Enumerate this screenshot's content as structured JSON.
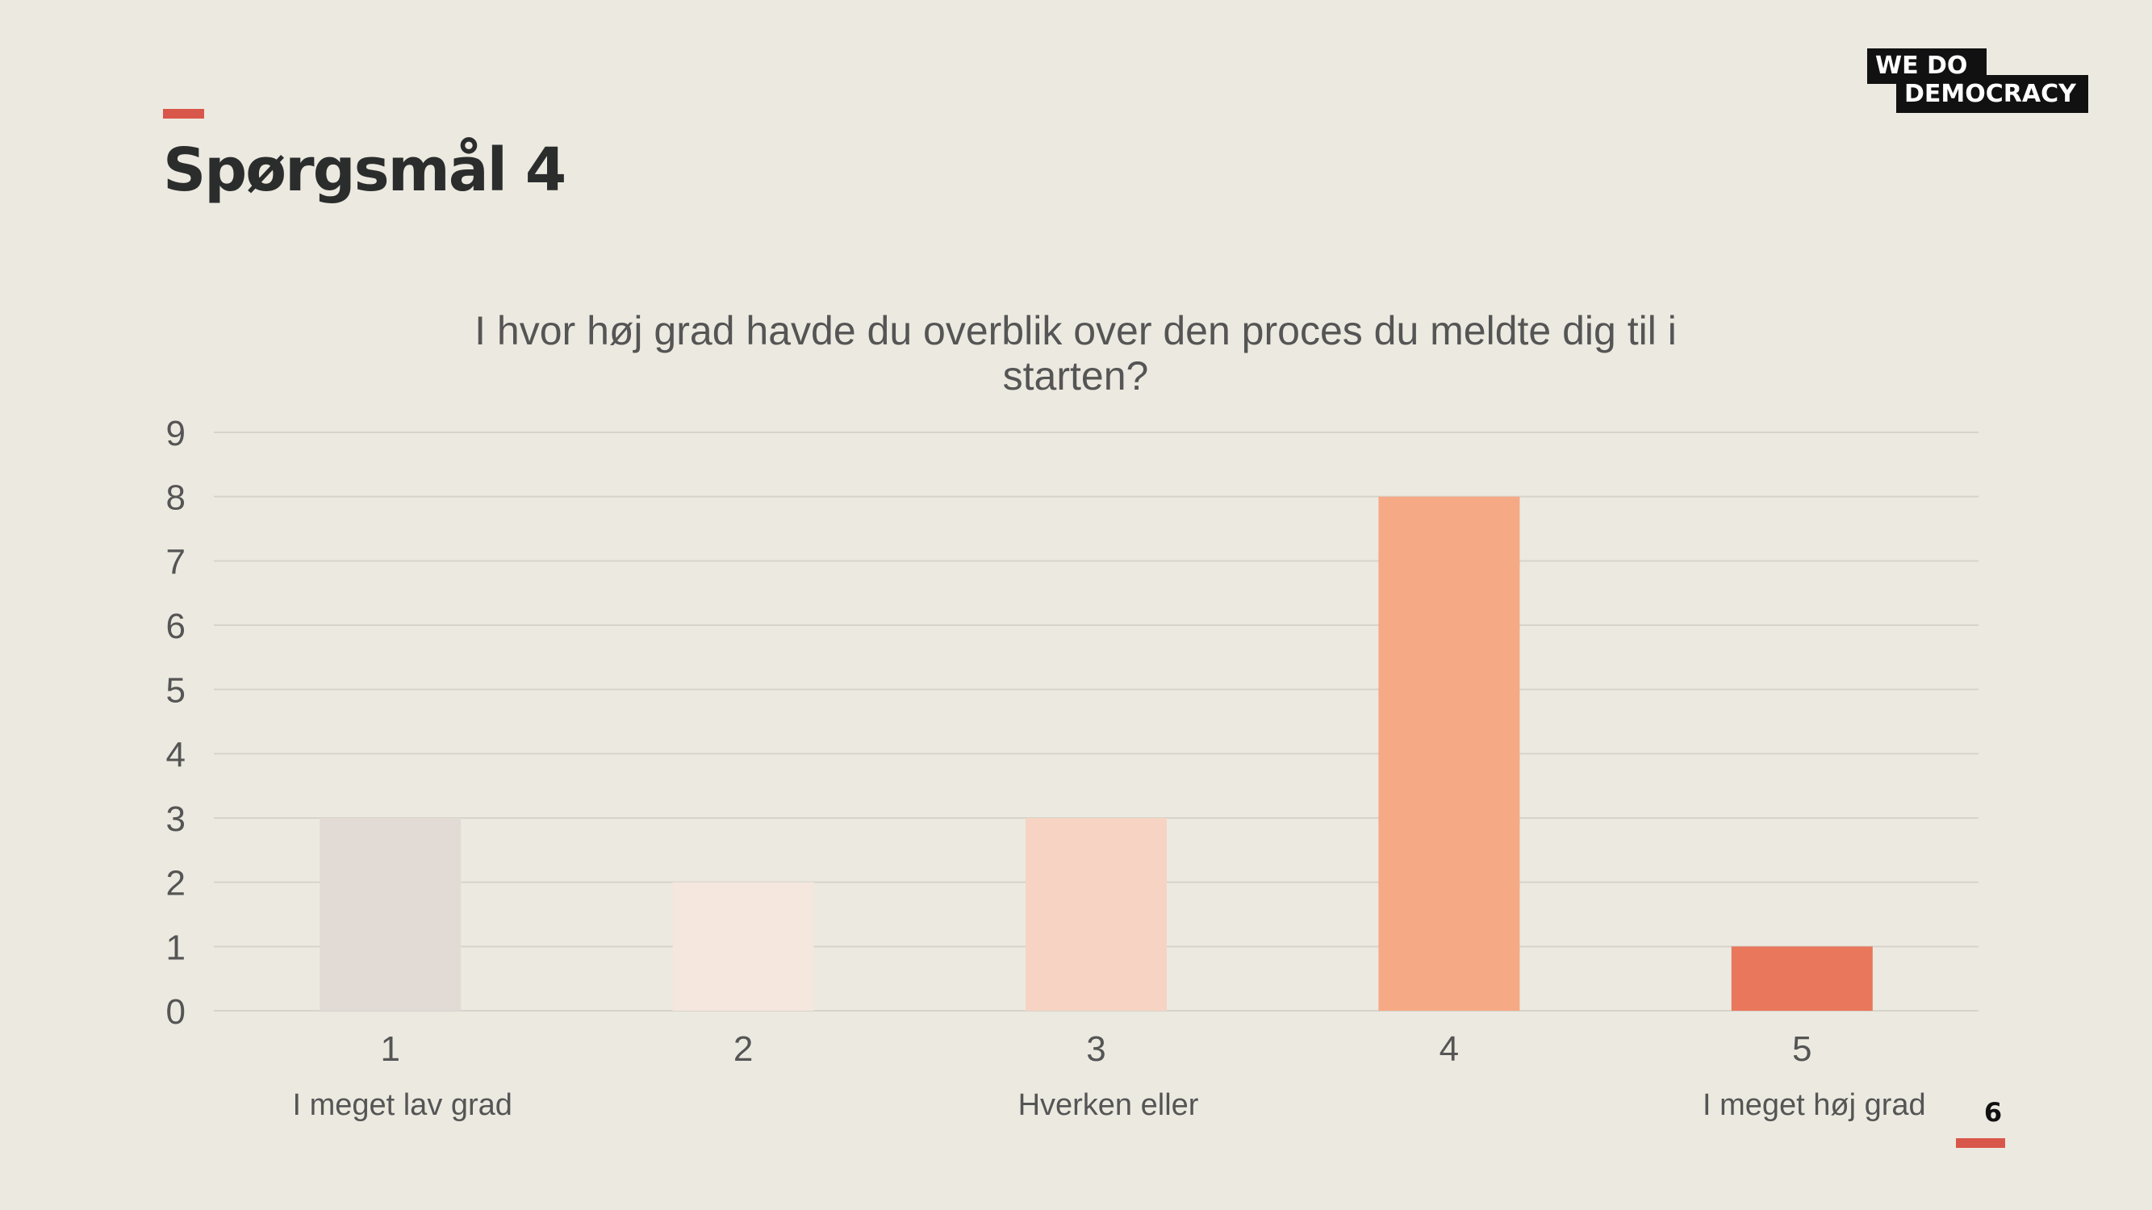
{
  "slide": {
    "title": "Spørgsmål 4",
    "page_number": "6",
    "accent_color": "#D9574A",
    "background": "#ECEAE0"
  },
  "logo": {
    "line1": "WE  DO",
    "line2": "DEMOCRACY"
  },
  "chart_data": {
    "type": "bar",
    "title_lines": [
      "I hvor høj grad havde du overblik over den proces du meldte dig til i",
      "starten?"
    ],
    "categories": [
      "1",
      "2",
      "3",
      "4",
      "5"
    ],
    "category_sublabels": [
      "I meget lav grad",
      "",
      "Hverken eller",
      "",
      "I meget høj grad"
    ],
    "values": [
      3,
      2,
      3,
      8,
      1
    ],
    "colors": [
      "#E2DBD5",
      "#F5E6DE",
      "#F6D3C3",
      "#F6A985",
      "#E8775B"
    ],
    "ylim": [
      0,
      9
    ],
    "yticks": [
      0,
      1,
      2,
      3,
      4,
      5,
      6,
      7,
      8,
      9
    ],
    "grid": true,
    "legend": "none"
  }
}
